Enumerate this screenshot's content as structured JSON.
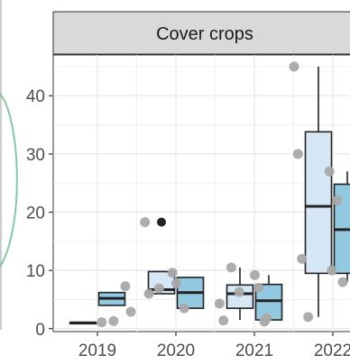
{
  "chart_data": {
    "type": "box",
    "panel_title": "Cover crops",
    "categories": [
      "2019",
      "2020",
      "2021",
      "2022"
    ],
    "ylim": [
      -0.5,
      47
    ],
    "y_ticks": [
      0,
      10,
      20,
      30,
      40
    ],
    "grid": true,
    "colors": {
      "light": "#d6e8f5",
      "dark": "#93c9e0",
      "point": "#a9a9a9",
      "strip": "#d9d9d9"
    },
    "boxes": [
      {
        "category": "2019",
        "fill": "light",
        "min": 1.0,
        "q1": 1.0,
        "median": 1.0,
        "q3": 1.0,
        "max": 1.0
      },
      {
        "category": "2019",
        "fill": "dark",
        "min": 4.0,
        "q1": 4.0,
        "median": 5.2,
        "q3": 6.2,
        "max": 6.2
      },
      {
        "category": "2020",
        "fill": "light",
        "min": 6.0,
        "q1": 6.0,
        "median": 6.7,
        "q3": 9.8,
        "max": 9.8,
        "outliers": [
          18.3
        ]
      },
      {
        "category": "2020",
        "fill": "dark",
        "min": 3.5,
        "q1": 3.5,
        "median": 6.2,
        "q3": 8.8,
        "max": 8.8
      },
      {
        "category": "2021",
        "fill": "light",
        "min": 1.5,
        "q1": 3.5,
        "median": 6.0,
        "q3": 7.5,
        "max": 10.5
      },
      {
        "category": "2021",
        "fill": "dark",
        "min": 1.0,
        "q1": 1.5,
        "median": 4.8,
        "q3": 7.6,
        "max": 9.2
      },
      {
        "category": "2022",
        "fill": "light",
        "min": 2.0,
        "q1": 9.5,
        "median": 21.0,
        "q3": 33.8,
        "max": 45.0
      },
      {
        "category": "2022",
        "fill": "dark",
        "min": 8.0,
        "q1": 9.5,
        "median": 17.0,
        "q3": 24.8,
        "max": 27.0
      }
    ],
    "points": [
      {
        "x": 2019.55,
        "y": 1.1
      },
      {
        "x": 2019.7,
        "y": 1.3
      },
      {
        "x": 2019.85,
        "y": 7.3
      },
      {
        "x": 2019.92,
        "y": 2.9
      },
      {
        "x": 2020.1,
        "y": 18.3
      },
      {
        "x": 2020.15,
        "y": 6.0
      },
      {
        "x": 2020.28,
        "y": 6.9
      },
      {
        "x": 2020.45,
        "y": 9.6
      },
      {
        "x": 2020.5,
        "y": 7.8
      },
      {
        "x": 2020.6,
        "y": 3.5
      },
      {
        "x": 2021.05,
        "y": 4.3
      },
      {
        "x": 2021.1,
        "y": 1.4
      },
      {
        "x": 2021.2,
        "y": 10.5
      },
      {
        "x": 2021.3,
        "y": 6.3
      },
      {
        "x": 2021.5,
        "y": 9.2
      },
      {
        "x": 2021.55,
        "y": 7.0
      },
      {
        "x": 2021.62,
        "y": 1.2
      },
      {
        "x": 2021.65,
        "y": 1.8
      },
      {
        "x": 2022.0,
        "y": 45.0
      },
      {
        "x": 2022.05,
        "y": 30.0
      },
      {
        "x": 2022.1,
        "y": 12.0
      },
      {
        "x": 2022.18,
        "y": 2.0
      },
      {
        "x": 2022.45,
        "y": 27.0
      },
      {
        "x": 2022.48,
        "y": 10.0
      },
      {
        "x": 2022.55,
        "y": 22.0
      },
      {
        "x": 2022.62,
        "y": 8.0
      }
    ]
  }
}
